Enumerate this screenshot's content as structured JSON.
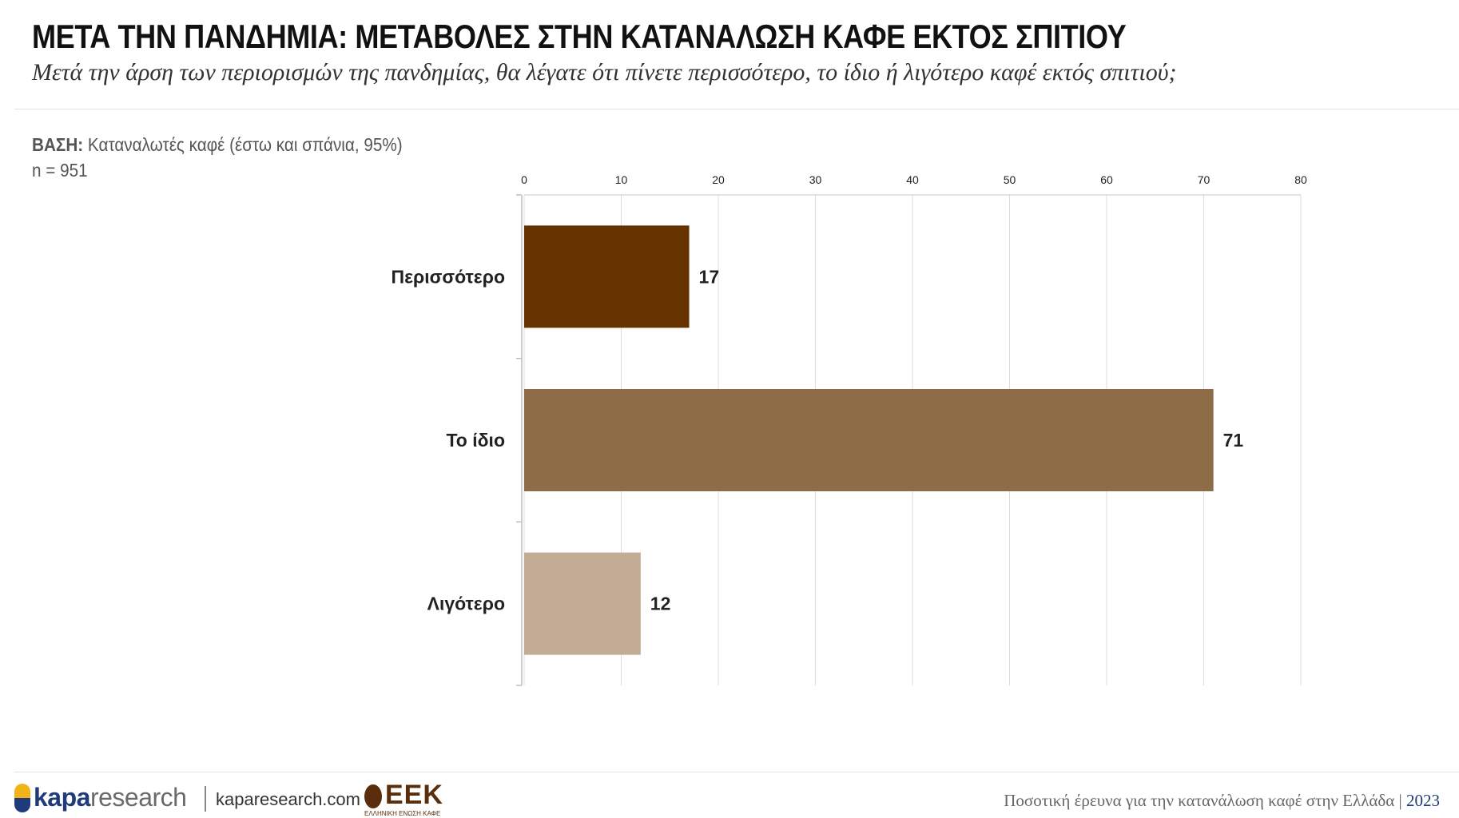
{
  "header": {
    "title": "ΜΕΤΑ ΤΗΝ ΠΑΝΔΗΜΙΑ: ΜΕΤΑΒΟΛΕΣ ΣΤΗΝ ΚΑΤΑΝΑΛΩΣΗ ΚΑΦΕ ΕΚΤΟΣ ΣΠΙΤΙΟΥ",
    "subtitle": "Μετά την άρση των περιορισμών της πανδημίας, θα λέγατε ότι πίνετε περισσότερο, το ίδιο ή λιγότερο καφέ εκτός σπιτιού;"
  },
  "base": {
    "label": "ΒΑΣΗ:",
    "text": "Καταναλωτές καφέ (έστω και σπάνια, 95%)",
    "n": "n = 951"
  },
  "chart_data": {
    "type": "bar",
    "orientation": "horizontal",
    "categories": [
      "Περισσότερο",
      "Το ίδιο",
      "Λιγότερο"
    ],
    "values": [
      17,
      71,
      12
    ],
    "colors": [
      "#663300",
      "#8f6c48",
      "#c2ac96"
    ],
    "xlim": [
      0,
      80
    ],
    "x_ticks": [
      0,
      10,
      20,
      30,
      40,
      50,
      60,
      70,
      80
    ],
    "x_axis_position": "top",
    "grid": true
  },
  "footer": {
    "kapa_logo_bold": "kapa",
    "kapa_logo_light": "research",
    "site": "kaparesearch.com",
    "eek_logo": "ΕΕΚ",
    "eek_sub": "ΕΛΛΗΝΙΚΗ ΕΝΩΣΗ ΚΑΦΕ",
    "survey": "Ποσοτική έρευνα για την κατανάλωση καφέ στην Ελλάδα",
    "divider": "|",
    "year": "2023"
  }
}
